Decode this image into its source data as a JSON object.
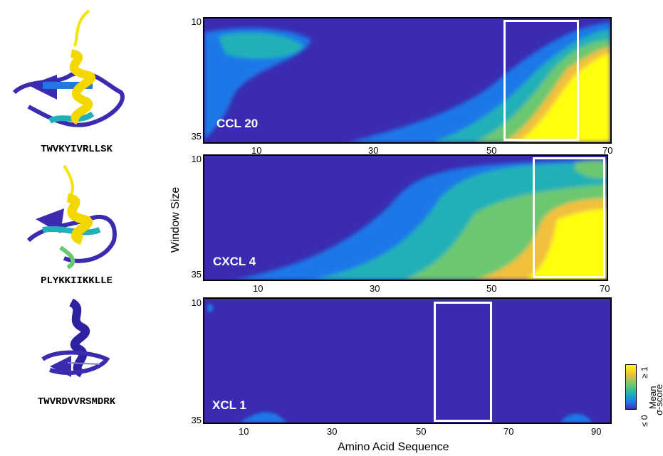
{
  "sequences": [
    "TWVKYIVRLLSK",
    "PLYKKIIKKLLE",
    "TWVRDVVRSMDRK"
  ],
  "y_axis_label": "Window Size",
  "x_axis_label": "Amino Acid Sequence",
  "colorbar": {
    "title": "Mean",
    "subtitle": "σ-score",
    "top_label": "≥ 1",
    "bottom_label": "≤ 0",
    "colors": [
      "#3a2bb0",
      "#1f78e8",
      "#22b0b8",
      "#6cc870",
      "#f2c03c",
      "#ffff10"
    ]
  },
  "chart_data": [
    {
      "type": "heatmap",
      "name": "CCL 20",
      "x_ticks": [
        10,
        30,
        50,
        70
      ],
      "xlim": [
        1,
        70
      ],
      "y_ticks": [
        10,
        35
      ],
      "ylim": [
        10,
        35
      ],
      "highlight_box": [
        52,
        65
      ],
      "value_range": [
        0,
        1
      ]
    },
    {
      "type": "heatmap",
      "name": "CXCL 4",
      "x_ticks": [
        10,
        30,
        50,
        70
      ],
      "xlim": [
        1,
        70
      ],
      "y_ticks": [
        10,
        35
      ],
      "ylim": [
        10,
        35
      ],
      "highlight_box": [
        57,
        69
      ],
      "value_range": [
        0,
        1
      ]
    },
    {
      "type": "heatmap",
      "name": "XCL 1",
      "x_ticks": [
        10,
        30,
        50,
        70,
        90
      ],
      "xlim": [
        1,
        93
      ],
      "y_ticks": [
        10,
        35
      ],
      "ylim": [
        10,
        35
      ],
      "highlight_box": [
        54,
        66
      ],
      "value_range": [
        0,
        1
      ]
    }
  ]
}
